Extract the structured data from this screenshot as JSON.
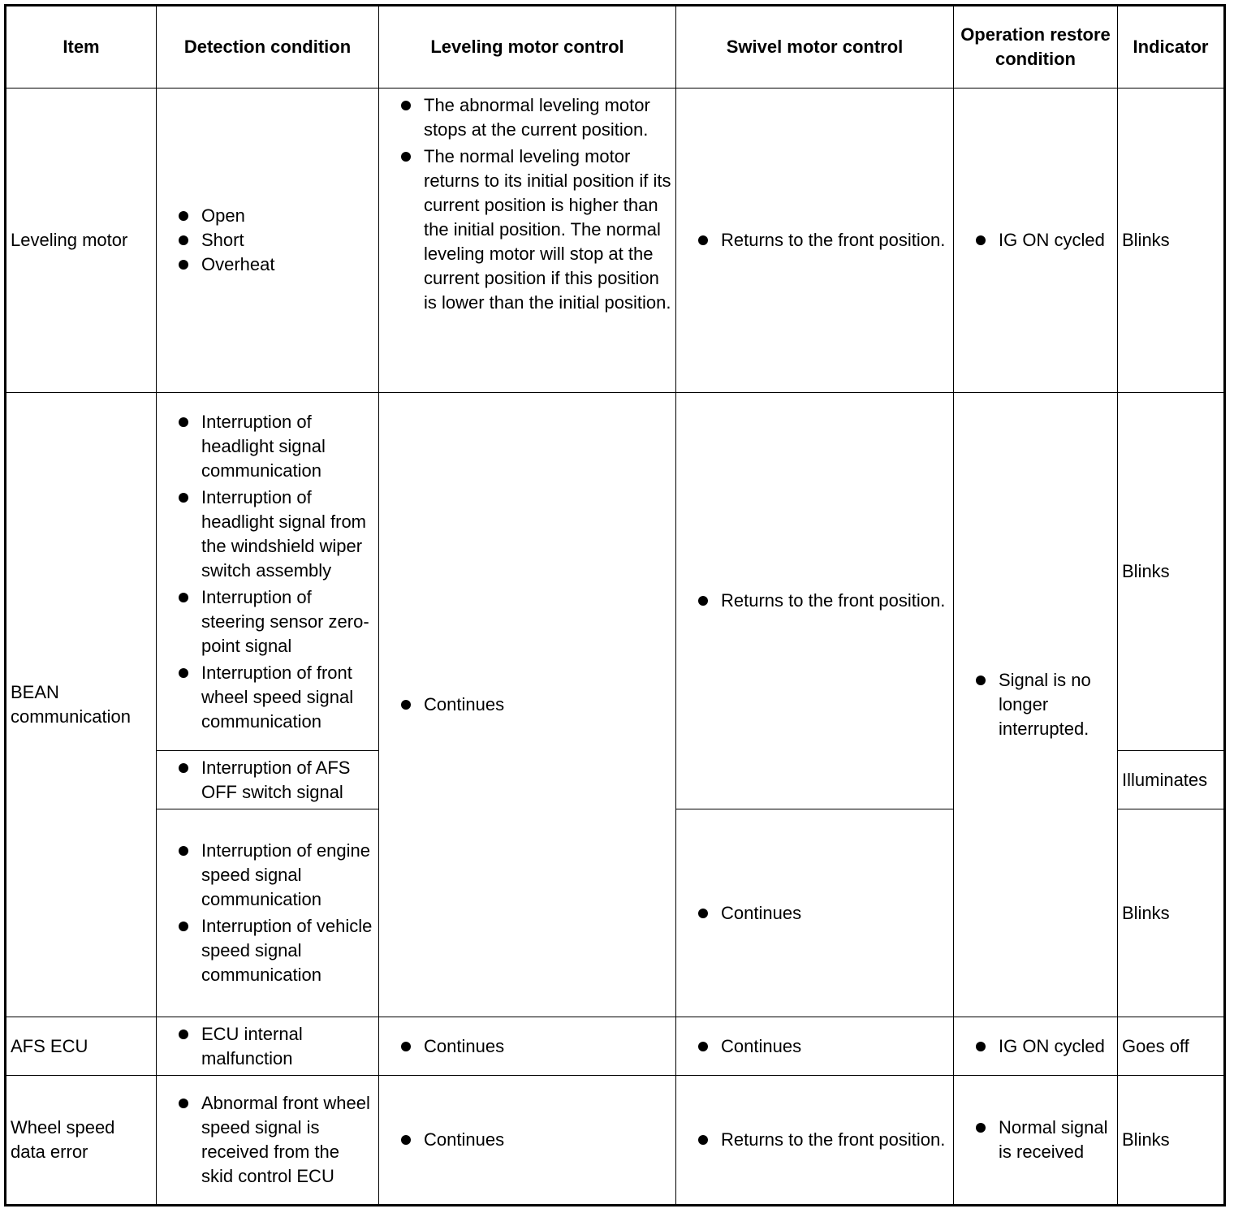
{
  "headers": {
    "item": "Item",
    "detection": "Detection condition",
    "leveling": "Leveling motor control",
    "swivel": "Swivel motor control",
    "restore": "Operation restore condition",
    "indicator": "Indicator"
  },
  "rows": {
    "leveling_motor": {
      "item": "Leveling motor",
      "detection": [
        "Open",
        "Short",
        "Overheat"
      ],
      "leveling": [
        "The abnormal leveling motor stops at the current position.",
        "The normal leveling motor returns to its initial position if its current position is higher than the initial position. The normal leveling motor will stop at the current position if this position is lower than the initial position."
      ],
      "swivel": "Returns to the front position.",
      "restore": "IG ON cycled",
      "indicator": "Blinks"
    },
    "bean": {
      "item": "BEAN communication",
      "detection_a": [
        "Interruption of headlight signal communication",
        "Interruption of headlight signal from the windshield wiper switch assembly",
        "Interruption of steering sensor zero-point signal",
        "Interruption of front wheel speed signal communication"
      ],
      "detection_b": [
        "Interruption of AFS OFF switch signal"
      ],
      "detection_c": [
        "Interruption of engine speed signal communication",
        "Interruption of vehicle speed signal communication"
      ],
      "leveling": "Continues",
      "swivel_ab": "Returns to the front position.",
      "swivel_c": "Continues",
      "restore": "Signal is no longer interrupted.",
      "indicator_a": "Blinks",
      "indicator_b": "Illuminates",
      "indicator_c": "Blinks"
    },
    "afs_ecu": {
      "item": "AFS ECU",
      "detection": "ECU internal malfunction",
      "leveling": "Continues",
      "swivel": "Continues",
      "restore": "IG ON cycled",
      "indicator": "Goes off"
    },
    "wheel_speed": {
      "item": "Wheel speed data error",
      "detection": "Abnormal front wheel speed signal is received from the skid control ECU",
      "leveling": "Continues",
      "swivel": "Returns to the front position.",
      "restore": "Normal signal is received",
      "indicator": "Blinks"
    }
  }
}
